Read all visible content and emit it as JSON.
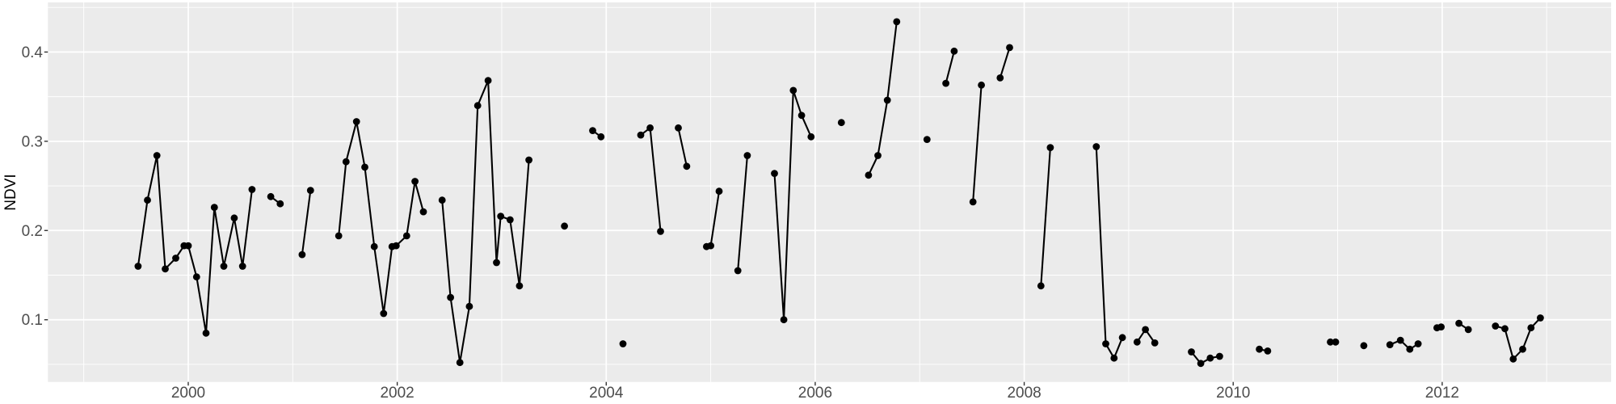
{
  "figure": {
    "background_color": "#FFFFFF",
    "panel_color": "#EBEBEB",
    "grid_major_color": "#FFFFFF",
    "grid_minor_color": "#FFFFFF",
    "axis_text_color": "#4D4D4D",
    "tick_mark_color": "#333333",
    "series_color": "#000000"
  },
  "chart_data": {
    "type": "line",
    "title": "",
    "xlabel": "",
    "ylabel": "NDVI",
    "legend": "none",
    "grid": "major and minor, white on grey panel",
    "point_shape": "filled-circle",
    "xlim": [
      1998.657,
      2013.617
    ],
    "ylim": [
      0.0303,
      0.4556
    ],
    "x_ticks": [
      {
        "value": 2000,
        "label": "2000"
      },
      {
        "value": 2002,
        "label": "2002"
      },
      {
        "value": 2004,
        "label": "2004"
      },
      {
        "value": 2006,
        "label": "2006"
      },
      {
        "value": 2008,
        "label": "2008"
      },
      {
        "value": 2010,
        "label": "2010"
      },
      {
        "value": 2012,
        "label": "2012"
      }
    ],
    "x_minor_ticks": [
      1999,
      2001,
      2003,
      2005,
      2007,
      2009,
      2011,
      2013
    ],
    "y_ticks": [
      {
        "value": 0.1,
        "label": "0.1"
      },
      {
        "value": 0.2,
        "label": "0.2"
      },
      {
        "value": 0.3,
        "label": "0.3"
      },
      {
        "value": 0.4,
        "label": "0.4"
      }
    ],
    "y_minor_ticks": [
      0.05,
      0.15,
      0.25,
      0.35,
      0.45
    ],
    "series_name": "NDVI",
    "segments": [
      {
        "points": [
          [
            1999.52,
            0.16
          ],
          [
            1999.61,
            0.234
          ],
          [
            1999.7,
            0.284
          ],
          [
            1999.78,
            0.157
          ],
          [
            1999.88,
            0.169
          ],
          [
            1999.96,
            0.183
          ],
          [
            2000.0,
            0.183
          ],
          [
            2000.08,
            0.148
          ],
          [
            2000.17,
            0.085
          ],
          [
            2000.25,
            0.226
          ],
          [
            2000.34,
            0.16
          ],
          [
            2000.44,
            0.214
          ],
          [
            2000.52,
            0.16
          ],
          [
            2000.61,
            0.246
          ]
        ]
      },
      {
        "points": [
          [
            2000.79,
            0.238
          ],
          [
            2000.88,
            0.23
          ]
        ]
      },
      {
        "points": [
          [
            2001.09,
            0.173
          ],
          [
            2001.17,
            0.245
          ]
        ]
      },
      {
        "points": [
          [
            2001.44,
            0.194
          ],
          [
            2001.51,
            0.277
          ],
          [
            2001.61,
            0.322
          ],
          [
            2001.69,
            0.271
          ],
          [
            2001.78,
            0.182
          ],
          [
            2001.87,
            0.107
          ],
          [
            2001.95,
            0.182
          ],
          [
            2001.99,
            0.183
          ],
          [
            2002.09,
            0.194
          ],
          [
            2002.17,
            0.255
          ],
          [
            2002.25,
            0.221
          ]
        ]
      },
      {
        "points": [
          [
            2002.43,
            0.234
          ],
          [
            2002.51,
            0.125
          ],
          [
            2002.6,
            0.052
          ],
          [
            2002.69,
            0.115
          ],
          [
            2002.77,
            0.34
          ],
          [
            2002.87,
            0.368
          ],
          [
            2002.95,
            0.164
          ],
          [
            2002.99,
            0.216
          ],
          [
            2003.08,
            0.212
          ],
          [
            2003.17,
            0.138
          ],
          [
            2003.26,
            0.279
          ]
        ]
      },
      {
        "points": [
          [
            2003.6,
            0.205
          ]
        ]
      },
      {
        "points": [
          [
            2003.87,
            0.312
          ],
          [
            2003.95,
            0.305
          ]
        ]
      },
      {
        "points": [
          [
            2004.16,
            0.073
          ]
        ]
      },
      {
        "points": [
          [
            2004.33,
            0.307
          ],
          [
            2004.42,
            0.315
          ],
          [
            2004.52,
            0.199
          ]
        ]
      },
      {
        "points": [
          [
            2004.69,
            0.315
          ],
          [
            2004.77,
            0.272
          ]
        ]
      },
      {
        "points": [
          [
            2004.96,
            0.182
          ],
          [
            2005.0,
            0.183
          ],
          [
            2005.08,
            0.244
          ]
        ]
      },
      {
        "points": [
          [
            2005.26,
            0.155
          ],
          [
            2005.35,
            0.284
          ]
        ]
      },
      {
        "points": [
          [
            2005.61,
            0.264
          ],
          [
            2005.7,
            0.1
          ],
          [
            2005.79,
            0.357
          ],
          [
            2005.87,
            0.329
          ],
          [
            2005.96,
            0.305
          ]
        ]
      },
      {
        "points": [
          [
            2006.25,
            0.321
          ]
        ]
      },
      {
        "points": [
          [
            2006.51,
            0.262
          ],
          [
            2006.6,
            0.284
          ],
          [
            2006.69,
            0.346
          ],
          [
            2006.78,
            0.434
          ]
        ]
      },
      {
        "points": [
          [
            2007.07,
            0.302
          ]
        ]
      },
      {
        "points": [
          [
            2007.25,
            0.365
          ],
          [
            2007.33,
            0.401
          ]
        ]
      },
      {
        "points": [
          [
            2007.51,
            0.232
          ],
          [
            2007.59,
            0.363
          ]
        ]
      },
      {
        "points": [
          [
            2007.77,
            0.371
          ],
          [
            2007.86,
            0.405
          ]
        ]
      },
      {
        "points": [
          [
            2008.16,
            0.138
          ],
          [
            2008.25,
            0.293
          ]
        ]
      },
      {
        "points": [
          [
            2008.69,
            0.294
          ],
          [
            2008.78,
            0.073
          ],
          [
            2008.86,
            0.057
          ],
          [
            2008.94,
            0.08
          ]
        ]
      },
      {
        "points": [
          [
            2009.08,
            0.075
          ],
          [
            2009.16,
            0.089
          ],
          [
            2009.25,
            0.074
          ]
        ]
      },
      {
        "points": [
          [
            2009.6,
            0.064
          ],
          [
            2009.69,
            0.051
          ],
          [
            2009.78,
            0.057
          ],
          [
            2009.87,
            0.059
          ]
        ]
      },
      {
        "points": [
          [
            2010.25,
            0.067
          ],
          [
            2010.33,
            0.065
          ]
        ]
      },
      {
        "points": [
          [
            2010.93,
            0.075
          ],
          [
            2010.98,
            0.075
          ]
        ]
      },
      {
        "points": [
          [
            2011.25,
            0.071
          ]
        ]
      },
      {
        "points": [
          [
            2011.5,
            0.072
          ],
          [
            2011.6,
            0.077
          ],
          [
            2011.69,
            0.067
          ],
          [
            2011.77,
            0.073
          ]
        ]
      },
      {
        "points": [
          [
            2011.95,
            0.091
          ],
          [
            2011.99,
            0.092
          ]
        ]
      },
      {
        "points": [
          [
            2012.16,
            0.096
          ],
          [
            2012.25,
            0.089
          ]
        ]
      },
      {
        "points": [
          [
            2012.51,
            0.093
          ],
          [
            2012.6,
            0.09
          ],
          [
            2012.68,
            0.056
          ],
          [
            2012.77,
            0.067
          ],
          [
            2012.85,
            0.091
          ],
          [
            2012.94,
            0.102
          ]
        ]
      }
    ]
  }
}
